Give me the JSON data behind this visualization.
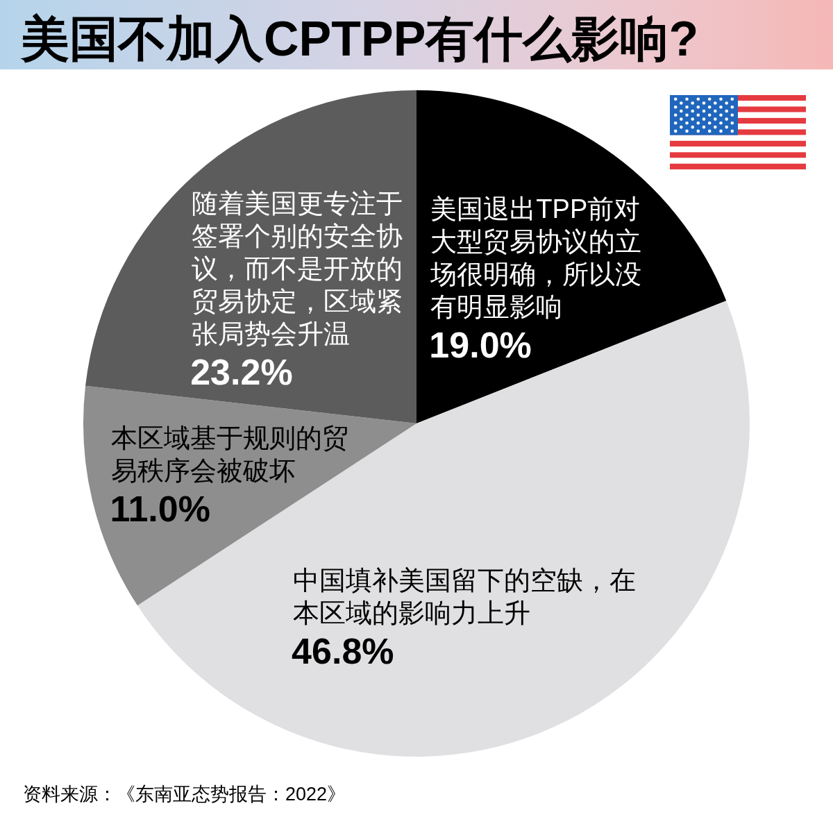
{
  "chart_data": {
    "type": "pie",
    "title": "美国不加入CPTPP有什么影响?",
    "categories": [
      "美国退出TPP前对大型贸易协议的立场很明确，所以没有明显影响",
      "中国填补美国留下的空缺，在本区域的影响力上升",
      "本区域基于规则的贸易秩序会被破坏",
      "随着美国更专注于签署个别的安全协议，而不是开放的贸易协定，区域紧张局势会升温"
    ],
    "values": [
      19.0,
      46.8,
      11.0,
      23.2
    ],
    "colors": [
      "#000000",
      "#e0e0e2",
      "#8e8e8e",
      "#5c5c5c"
    ],
    "value_labels": [
      "19.0%",
      "46.8%",
      "11.0%",
      "23.2%"
    ],
    "annotations": [
      "资料来源：《东南亚态势报告：2022》"
    ]
  }
}
